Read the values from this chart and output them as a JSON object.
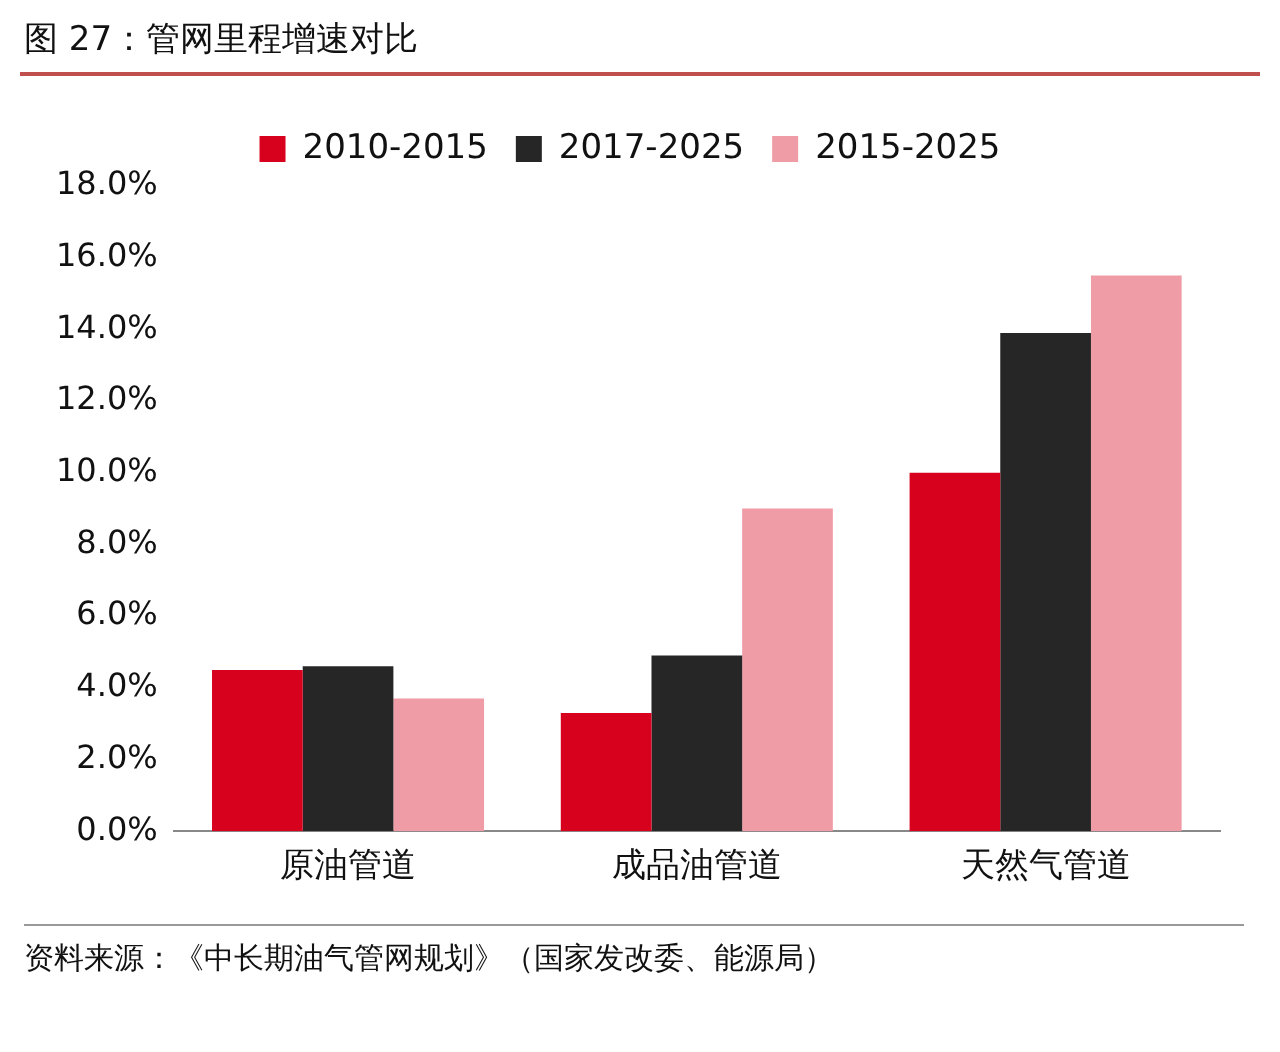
{
  "chart_data": {
    "type": "bar",
    "title": "图 27：管网里程增速对比",
    "categories": [
      "原油管道",
      "成品油管道",
      "天然气管道"
    ],
    "series": [
      {
        "name": "2010-2015",
        "color": "#d7001d",
        "values": [
          4.5,
          3.3,
          10.0
        ]
      },
      {
        "name": "2017-2025",
        "color": "#262626",
        "values": [
          4.6,
          4.9,
          13.9
        ]
      },
      {
        "name": "2015-2025",
        "color": "#f09ca6",
        "values": [
          3.7,
          9.0,
          15.5
        ]
      }
    ],
    "ylim": [
      0,
      18
    ],
    "yticks": [
      {
        "value": 0,
        "label": "0.0%"
      },
      {
        "value": 2,
        "label": "2.0%"
      },
      {
        "value": 4,
        "label": "4.0%"
      },
      {
        "value": 6,
        "label": "6.0%"
      },
      {
        "value": 8,
        "label": "8.0%"
      },
      {
        "value": 10,
        "label": "10.0%"
      },
      {
        "value": 12,
        "label": "12.0%"
      },
      {
        "value": 14,
        "label": "14.0%"
      },
      {
        "value": 16,
        "label": "16.0%"
      },
      {
        "value": 18,
        "label": "18.0%"
      }
    ],
    "grid": false,
    "legend": "top",
    "annotations": [
      "资料来源：《中长期油气管网规划》（国家发改委、能源局）"
    ]
  }
}
